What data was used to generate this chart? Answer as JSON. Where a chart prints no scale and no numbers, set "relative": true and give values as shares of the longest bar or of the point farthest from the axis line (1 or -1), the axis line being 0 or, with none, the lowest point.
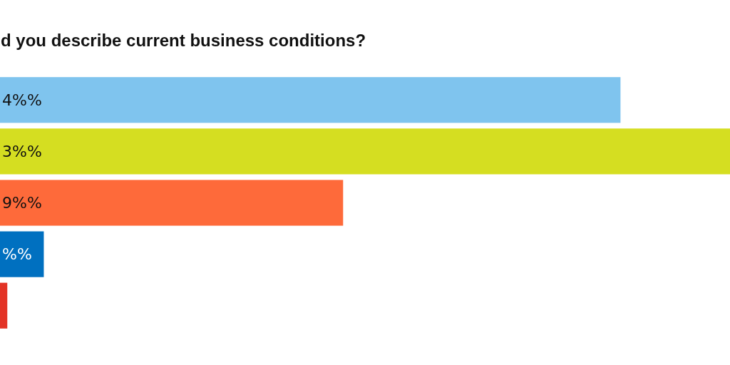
{
  "chart_data": {
    "type": "bar",
    "orientation": "horizontal",
    "relative": true,
    "title": "d you describe current business conditions?",
    "categories": [
      null,
      null,
      null,
      null,
      null
    ],
    "values": [
      0.85,
      1,
      0.47,
      0.06,
      0.01
    ],
    "colors": [
      "#7fc4ee",
      "#d5de21",
      "#fe6a3a",
      "#0070c0",
      "#e33326"
    ],
    "annotations": [
      "4%%",
      "3%%",
      "9%%",
      "%%"
    ]
  }
}
